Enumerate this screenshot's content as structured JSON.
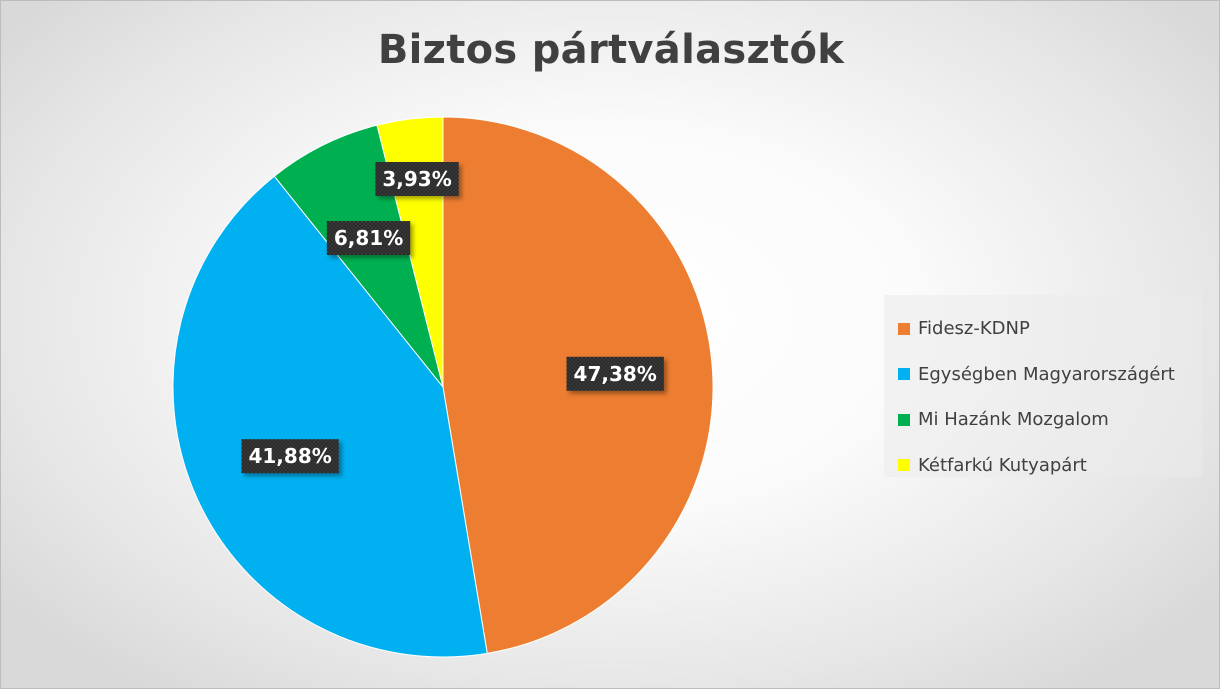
{
  "chart_data": {
    "type": "pie",
    "title": "Biztos pártválasztók",
    "categories": [
      "Fidesz-KDNP",
      "Egységben Magyarországért",
      "Mi Hazánk Mozgalom",
      "Kétfarkú Kutyapárt"
    ],
    "values": [
      47.38,
      41.88,
      6.81,
      3.93
    ],
    "data_labels": [
      "47,38%",
      "41,88%",
      "6,81%",
      "3,93%"
    ],
    "colors": [
      "#ed7d31",
      "#00b0f0",
      "#00b050",
      "#ffff00"
    ],
    "start_angle": "12 o'clock",
    "direction": "clockwise",
    "legend_position": "right"
  }
}
